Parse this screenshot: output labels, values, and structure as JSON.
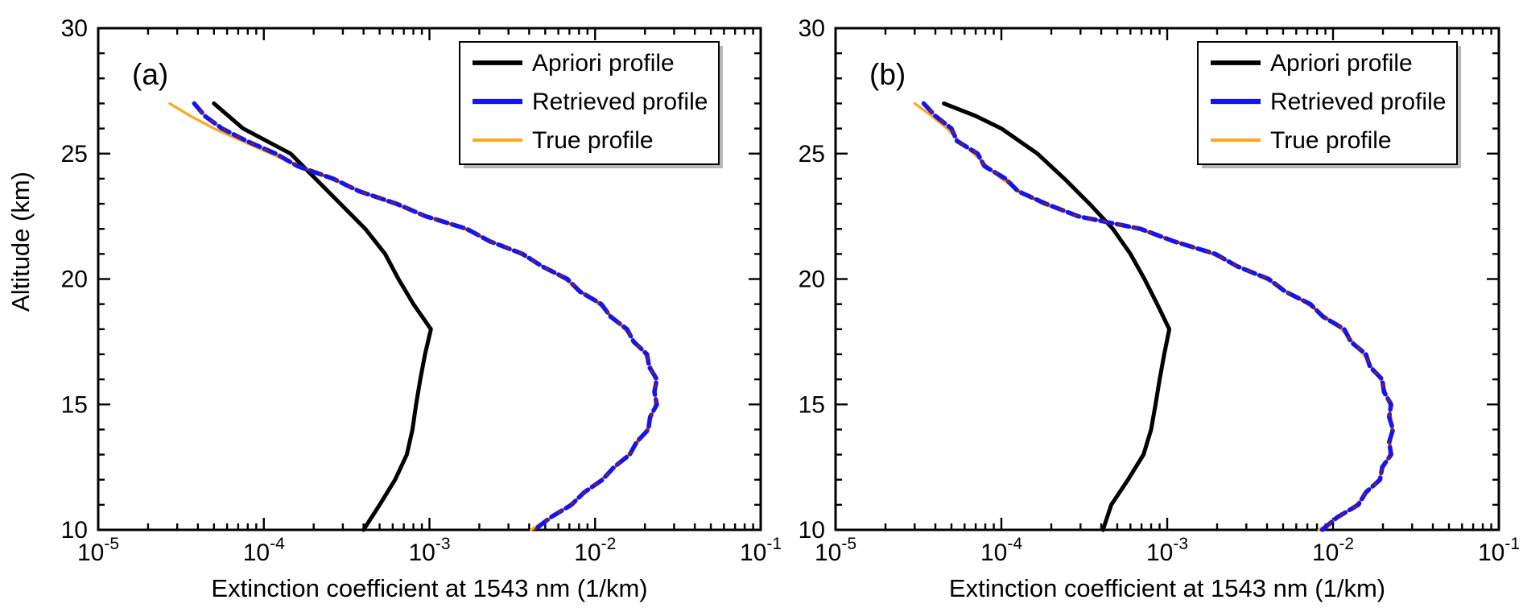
{
  "figure": {
    "background": "#ffffff",
    "panel_labels": [
      "(a)",
      "(b)"
    ]
  },
  "chart_data": [
    {
      "type": "line",
      "panel_label": "(a)",
      "xlabel": "Extinction coefficient at 1543 nm (1/km)",
      "ylabel": "Altitude (km)",
      "x_scale": "log",
      "xlim": [
        1e-05,
        0.1
      ],
      "ylim": [
        10,
        30
      ],
      "x_ticks": [
        {
          "v": 1e-05,
          "exp": "-5"
        },
        {
          "v": 0.0001,
          "exp": "-4"
        },
        {
          "v": 0.001,
          "exp": "-3"
        },
        {
          "v": 0.01,
          "exp": "-2"
        },
        {
          "v": 0.1,
          "exp": "-1"
        }
      ],
      "y_ticks": [
        10,
        15,
        20,
        25,
        30
      ],
      "y_minor_step": 1,
      "grid": false,
      "legend": {
        "position": "upper-right",
        "entries": [
          "Apriori profile",
          "Retrieved profile",
          "True profile"
        ]
      },
      "series": [
        {
          "name": "Apriori profile",
          "color": "#000000",
          "width": 5,
          "z": 1,
          "points": [
            [
              5e-05,
              27
            ],
            [
              7.5e-05,
              26
            ],
            [
              0.000145,
              25
            ],
            [
              0.000205,
              24
            ],
            [
              0.00029,
              23
            ],
            [
              0.00041,
              22
            ],
            [
              0.00054,
              21
            ],
            [
              0.00065,
              20
            ],
            [
              0.0008,
              19
            ],
            [
              0.00102,
              18
            ],
            [
              0.00094,
              17
            ],
            [
              0.00088,
              16
            ],
            [
              0.00083,
              15
            ],
            [
              0.00079,
              14
            ],
            [
              0.00073,
              13
            ],
            [
              0.00062,
              12
            ],
            [
              0.0005,
              11
            ],
            [
              0.0004,
              10
            ]
          ]
        },
        {
          "name": "Retrieved profile",
          "color": "#1414f0",
          "width": 5.5,
          "dash": [
            15,
            6
          ],
          "edge_dash_color": "#8b2222",
          "z": 3,
          "points": [
            [
              3.8e-05,
              27
            ],
            [
              4.4e-05,
              26.5
            ],
            [
              5.6e-05,
              26
            ],
            [
              7.9e-05,
              25.5
            ],
            [
              0.000118,
              25
            ],
            [
              0.00016,
              24.5
            ],
            [
              0.000262,
              24
            ],
            [
              0.000376,
              23.5
            ],
            [
              0.000635,
              23
            ],
            [
              0.00095,
              22.5
            ],
            [
              0.00168,
              22
            ],
            [
              0.00232,
              21.5
            ],
            [
              0.00365,
              21
            ],
            [
              0.0048,
              20.5
            ],
            [
              0.0068,
              20
            ],
            [
              0.0081,
              19.5
            ],
            [
              0.0109,
              19
            ],
            [
              0.0124,
              18.5
            ],
            [
              0.0156,
              18
            ],
            [
              0.0171,
              17.5
            ],
            [
              0.0206,
              17
            ],
            [
              0.0212,
              16.5
            ],
            [
              0.0236,
              16
            ],
            [
              0.0228,
              15.5
            ],
            [
              0.0236,
              15
            ],
            [
              0.0215,
              14.5
            ],
            [
              0.021,
              14
            ],
            [
              0.0178,
              13.5
            ],
            [
              0.0162,
              13
            ],
            [
              0.013,
              12.5
            ],
            [
              0.0111,
              12
            ],
            [
              0.0086,
              11.5
            ],
            [
              0.0072,
              11
            ],
            [
              0.0054,
              10.5
            ],
            [
              0.0043,
              10
            ]
          ]
        },
        {
          "name": "True profile",
          "color": "#ffa51e",
          "width": 3.2,
          "z": 2,
          "points": [
            [
              2.7e-05,
              27
            ],
            [
              3.6e-05,
              26.5
            ],
            [
              5e-05,
              26
            ],
            [
              7.4e-05,
              25.5
            ],
            [
              0.00011,
              25
            ],
            [
              0.000165,
              24.5
            ],
            [
              0.00025,
              24
            ],
            [
              0.00039,
              23.5
            ],
            [
              0.0006,
              23
            ],
            [
              0.00098,
              22.5
            ],
            [
              0.0016,
              22
            ],
            [
              0.0024,
              21.5
            ],
            [
              0.0035,
              21
            ],
            [
              0.0049,
              20.5
            ],
            [
              0.0065,
              20
            ],
            [
              0.0083,
              19.5
            ],
            [
              0.0105,
              19
            ],
            [
              0.0127,
              18.5
            ],
            [
              0.015,
              18
            ],
            [
              0.0175,
              17.5
            ],
            [
              0.02,
              17
            ],
            [
              0.0218,
              16.5
            ],
            [
              0.023,
              16
            ],
            [
              0.0233,
              15.5
            ],
            [
              0.023,
              15
            ],
            [
              0.022,
              14.5
            ],
            [
              0.0205,
              14
            ],
            [
              0.0182,
              13.5
            ],
            [
              0.0158,
              13
            ],
            [
              0.0133,
              12.5
            ],
            [
              0.0108,
              12
            ],
            [
              0.0088,
              11.5
            ],
            [
              0.007,
              11
            ],
            [
              0.0055,
              10.5
            ],
            [
              0.0041,
              10
            ]
          ]
        }
      ]
    },
    {
      "type": "line",
      "panel_label": "(b)",
      "xlabel": "Extinction coefficient at 1543 nm (1/km)",
      "ylabel": "",
      "x_scale": "log",
      "xlim": [
        1e-05,
        0.1
      ],
      "ylim": [
        10,
        30
      ],
      "x_ticks": [
        {
          "v": 1e-05,
          "exp": "-5"
        },
        {
          "v": 0.0001,
          "exp": "-4"
        },
        {
          "v": 0.001,
          "exp": "-3"
        },
        {
          "v": 0.01,
          "exp": "-2"
        },
        {
          "v": 0.1,
          "exp": "-1"
        }
      ],
      "y_ticks": [
        10,
        15,
        20,
        25,
        30
      ],
      "y_minor_step": 1,
      "grid": false,
      "legend": {
        "position": "upper-right",
        "entries": [
          "Apriori profile",
          "Retrieved profile",
          "True profile"
        ]
      },
      "series": [
        {
          "name": "Apriori profile",
          "color": "#000000",
          "width": 5,
          "z": 1,
          "points": [
            [
              4.5e-05,
              27
            ],
            [
              7e-05,
              26.5
            ],
            [
              0.0001,
              26
            ],
            [
              0.000165,
              25
            ],
            [
              0.00024,
              24
            ],
            [
              0.00034,
              23
            ],
            [
              0.00047,
              22
            ],
            [
              0.0006,
              21
            ],
            [
              0.00073,
              20
            ],
            [
              0.00087,
              19
            ],
            [
              0.00103,
              18
            ],
            [
              0.00096,
              17
            ],
            [
              0.0009,
              16
            ],
            [
              0.00085,
              15
            ],
            [
              0.0008,
              14
            ],
            [
              0.00072,
              13
            ],
            [
              0.00058,
              12
            ],
            [
              0.00046,
              11
            ],
            [
              0.00041,
              10
            ]
          ]
        },
        {
          "name": "Retrieved profile",
          "color": "#1414f0",
          "width": 5.5,
          "dash": [
            15,
            6
          ],
          "edge_dash_color": "#8b2222",
          "z": 3,
          "points": [
            [
              3.4e-05,
              27
            ],
            [
              4e-05,
              26.5
            ],
            [
              5e-05,
              26
            ],
            [
              5.4e-05,
              25.5
            ],
            [
              7.2e-05,
              25
            ],
            [
              7.9e-05,
              24.5
            ],
            [
              0.000106,
              24
            ],
            [
              0.000126,
              23.5
            ],
            [
              0.000186,
              23
            ],
            [
              0.00029,
              22.5
            ],
            [
              0.00069,
              22
            ],
            [
              0.0011,
              21.5
            ],
            [
              0.00195,
              21
            ],
            [
              0.00265,
              20.5
            ],
            [
              0.0041,
              20
            ],
            [
              0.00515,
              19.5
            ],
            [
              0.0073,
              19
            ],
            [
              0.0087,
              18.5
            ],
            [
              0.0117,
              18
            ],
            [
              0.0128,
              17.5
            ],
            [
              0.0158,
              17
            ],
            [
              0.0167,
              16.5
            ],
            [
              0.0198,
              16
            ],
            [
              0.0203,
              15.5
            ],
            [
              0.0224,
              15
            ],
            [
              0.0218,
              14.5
            ],
            [
              0.023,
              14
            ],
            [
              0.0218,
              13.5
            ],
            [
              0.0224,
              13
            ],
            [
              0.0198,
              12.5
            ],
            [
              0.0192,
              12
            ],
            [
              0.0158,
              11.5
            ],
            [
              0.0142,
              11
            ],
            [
              0.0106,
              10.5
            ],
            [
              0.0086,
              10
            ]
          ]
        },
        {
          "name": "True profile",
          "color": "#ffa51e",
          "width": 3.2,
          "z": 2,
          "points": [
            [
              3e-05,
              27
            ],
            [
              3.8e-05,
              26.5
            ],
            [
              4.7e-05,
              26
            ],
            [
              5.6e-05,
              25.5
            ],
            [
              6.8e-05,
              25
            ],
            [
              8.2e-05,
              24.5
            ],
            [
              0.0001,
              24
            ],
            [
              0.00013,
              23.5
            ],
            [
              0.000175,
              23
            ],
            [
              0.0003,
              22.5
            ],
            [
              0.00065,
              22
            ],
            [
              0.00115,
              21.5
            ],
            [
              0.00185,
              21
            ],
            [
              0.00275,
              20.5
            ],
            [
              0.0039,
              20
            ],
            [
              0.0053,
              19.5
            ],
            [
              0.007,
              19
            ],
            [
              0.009,
              18.5
            ],
            [
              0.0112,
              18
            ],
            [
              0.0132,
              17.5
            ],
            [
              0.0152,
              17
            ],
            [
              0.0172,
              16.5
            ],
            [
              0.0192,
              16
            ],
            [
              0.0208,
              15.5
            ],
            [
              0.0218,
              15
            ],
            [
              0.0223,
              14.5
            ],
            [
              0.0225,
              14
            ],
            [
              0.0223,
              13.5
            ],
            [
              0.0218,
              13
            ],
            [
              0.0203,
              12.5
            ],
            [
              0.0187,
              12
            ],
            [
              0.0162,
              11.5
            ],
            [
              0.0137,
              11
            ],
            [
              0.0108,
              10.5
            ],
            [
              0.0082,
              10
            ]
          ]
        }
      ]
    }
  ]
}
